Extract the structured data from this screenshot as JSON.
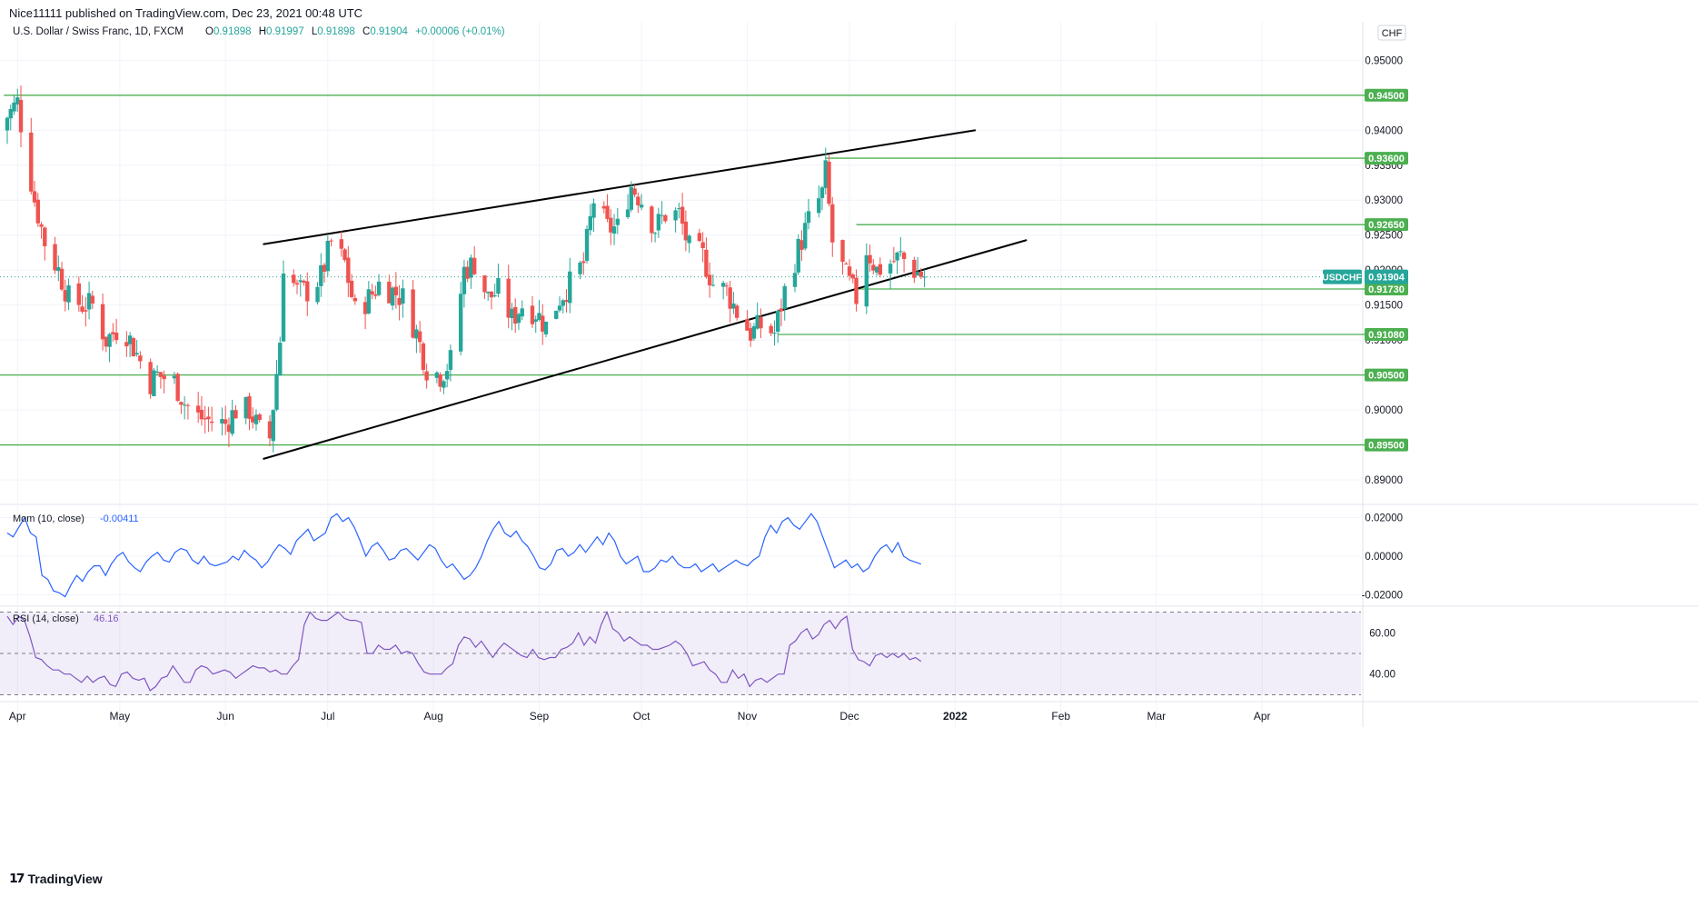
{
  "header": {
    "published": "Nice11111 published on TradingView.com, Dec 23, 2021 00:48 UTC"
  },
  "legend": {
    "symbol": "U.S. Dollar / Swiss Franc, 1D, FXCM",
    "o_label": "O",
    "o_value": "0.91898",
    "h_label": "H",
    "h_value": "0.91997",
    "l_label": "L",
    "l_value": "0.91898",
    "c_label": "C",
    "c_value": "0.91904",
    "change": "+0.00006 (+0.01%)"
  },
  "currency": "CHF",
  "price_ticks": [
    "0.95000",
    "0.94000",
    "0.93500",
    "0.93000",
    "0.92500",
    "0.92000",
    "0.91500",
    "0.91000",
    "0.90500",
    "0.90000",
    "0.89500",
    "0.89000"
  ],
  "levels": [
    {
      "label": "0.94500",
      "value": 0.945
    },
    {
      "label": "0.93600",
      "value": 0.936
    },
    {
      "label": "0.92650",
      "value": 0.9265
    },
    {
      "label": "0.91730",
      "value": 0.9173
    },
    {
      "label": "0.91080",
      "value": 0.9108
    },
    {
      "label": "0.90500",
      "value": 0.905
    },
    {
      "label": "0.89500",
      "value": 0.895
    }
  ],
  "last_price": {
    "symbol": "USDCHF",
    "value_label": "0.91904",
    "value": 0.91904
  },
  "months": [
    "Apr",
    "May",
    "Jun",
    "Jul",
    "Aug",
    "Sep",
    "Oct",
    "Nov",
    "Dec",
    "2022",
    "Feb",
    "Mar",
    "Apr"
  ],
  "mom": {
    "label": "Mom (10, close)",
    "value": "-0.00411",
    "ticks": [
      "0.02000",
      "0.00000",
      "-0.02000"
    ]
  },
  "rsi": {
    "label": "RSI (14, close)",
    "value": "46.16",
    "ticks": [
      "60.00",
      "40.00"
    ]
  },
  "watermark": "TradingView",
  "colors": {
    "up": "#26a69a",
    "down": "#ef5350",
    "level": "#4caf50",
    "trend": "#000000",
    "mom": "#2962ff",
    "rsi": "#7e57c2"
  },
  "chart_data": {
    "type": "candlestick",
    "symbol": "USDCHF",
    "timeframe": "1D",
    "x_range": [
      "2021-03-29",
      "2022-04-30"
    ],
    "ylim": [
      0.8865,
      0.9555
    ],
    "close_path": [
      [
        "2021-03-26",
        0.94
      ],
      [
        "2021-04-01",
        0.944
      ],
      [
        "2021-04-02",
        0.941
      ],
      [
        "2021-04-06",
        0.93
      ],
      [
        "2021-04-09",
        0.924
      ],
      [
        "2021-04-13",
        0.92
      ],
      [
        "2021-04-16",
        0.916
      ],
      [
        "2021-04-20",
        0.915
      ],
      [
        "2021-04-23",
        0.915
      ],
      [
        "2021-04-27",
        0.91
      ],
      [
        "2021-04-30",
        0.9115
      ],
      [
        "2021-05-03",
        0.911
      ],
      [
        "2021-05-06",
        0.908
      ],
      [
        "2021-05-10",
        0.904
      ],
      [
        "2021-05-12",
        0.905
      ],
      [
        "2021-05-17",
        0.904
      ],
      [
        "2021-05-20",
        0.901
      ],
      [
        "2021-05-24",
        0.899
      ],
      [
        "2021-05-27",
        0.8985
      ],
      [
        "2021-06-01",
        0.898
      ],
      [
        "2021-06-04",
        0.9
      ],
      [
        "2021-06-08",
        0.9
      ],
      [
        "2021-06-11",
        0.897
      ],
      [
        "2021-06-14",
        0.896
      ],
      [
        "2021-06-17",
        0.91
      ],
      [
        "2021-06-18",
        0.921
      ],
      [
        "2021-06-22",
        0.917
      ],
      [
        "2021-06-25",
        0.917
      ],
      [
        "2021-06-29",
        0.919
      ],
      [
        "2021-07-02",
        0.924
      ],
      [
        "2021-07-06",
        0.921
      ],
      [
        "2021-07-09",
        0.914
      ],
      [
        "2021-07-13",
        0.916
      ],
      [
        "2021-07-16",
        0.918
      ],
      [
        "2021-07-20",
        0.917
      ],
      [
        "2021-07-23",
        0.916
      ],
      [
        "2021-07-27",
        0.911
      ],
      [
        "2021-07-30",
        0.906
      ],
      [
        "2021-08-03",
        0.905
      ],
      [
        "2021-08-06",
        0.907
      ],
      [
        "2021-08-10",
        0.92
      ],
      [
        "2021-08-13",
        0.921
      ],
      [
        "2021-08-17",
        0.916
      ],
      [
        "2021-08-20",
        0.917
      ],
      [
        "2021-08-24",
        0.913
      ],
      [
        "2021-08-27",
        0.915
      ],
      [
        "2021-08-31",
        0.914
      ],
      [
        "2021-09-03",
        0.912
      ],
      [
        "2021-09-07",
        0.916
      ],
      [
        "2021-09-10",
        0.918
      ],
      [
        "2021-09-14",
        0.921
      ],
      [
        "2021-09-17",
        0.93
      ],
      [
        "2021-09-21",
        0.926
      ],
      [
        "2021-09-24",
        0.926
      ],
      [
        "2021-09-28",
        0.932
      ],
      [
        "2021-10-01",
        0.93
      ],
      [
        "2021-10-05",
        0.926
      ],
      [
        "2021-10-08",
        0.928
      ],
      [
        "2021-10-12",
        0.928
      ],
      [
        "2021-10-15",
        0.923
      ],
      [
        "2021-10-19",
        0.922
      ],
      [
        "2021-10-22",
        0.918
      ],
      [
        "2021-10-26",
        0.917
      ],
      [
        "2021-10-29",
        0.914
      ],
      [
        "2021-11-02",
        0.911
      ],
      [
        "2021-11-05",
        0.912
      ],
      [
        "2021-11-09",
        0.911
      ],
      [
        "2021-11-12",
        0.917
      ],
      [
        "2021-11-16",
        0.923
      ],
      [
        "2021-11-19",
        0.927
      ],
      [
        "2021-11-23",
        0.931
      ],
      [
        "2021-11-24",
        0.934
      ],
      [
        "2021-11-26",
        0.924
      ],
      [
        "2021-11-30",
        0.919
      ],
      [
        "2021-12-03",
        0.916
      ],
      [
        "2021-12-06",
        0.923
      ],
      [
        "2021-12-09",
        0.92
      ],
      [
        "2021-12-13",
        0.921
      ],
      [
        "2021-12-16",
        0.922
      ],
      [
        "2021-12-20",
        0.92
      ],
      [
        "2021-12-23",
        0.91904
      ]
    ],
    "trendlines": [
      {
        "from": [
          "2021-06-12",
          0.9237
        ],
        "to": [
          "2022-01-07",
          0.94
        ]
      },
      {
        "from": [
          "2021-06-12",
          0.893
        ],
        "to": [
          "2022-01-22",
          0.9243
        ]
      }
    ],
    "mom_ylim": [
      -0.0245,
      0.0245
    ],
    "mom_values": [
      0.012,
      0.01,
      0.015,
      0.02,
      0.012,
      0.01,
      -0.01,
      -0.012,
      -0.018,
      -0.019,
      -0.021,
      -0.015,
      -0.01,
      -0.013,
      -0.008,
      -0.005,
      -0.005,
      -0.01,
      -0.004,
      0.0,
      0.002,
      -0.003,
      -0.006,
      -0.008,
      -0.003,
      0.0,
      0.002,
      -0.002,
      -0.003,
      0.002,
      0.004,
      0.003,
      -0.002,
      -0.004,
      0.0,
      -0.004,
      -0.005,
      -0.004,
      -0.003,
      0.0,
      -0.002,
      0.003,
      0.0,
      -0.002,
      -0.006,
      -0.003,
      0.002,
      0.006,
      0.004,
      0.001,
      0.008,
      0.011,
      0.014,
      0.008,
      0.01,
      0.012,
      0.02,
      0.022,
      0.018,
      0.02,
      0.015,
      0.008,
      0.0,
      0.005,
      0.007,
      0.003,
      -0.002,
      -0.001,
      0.003,
      0.004,
      0.001,
      -0.002,
      0.002,
      0.006,
      0.004,
      -0.002,
      -0.006,
      -0.004,
      -0.008,
      -0.012,
      -0.01,
      -0.006,
      0.0,
      0.008,
      0.014,
      0.018,
      0.012,
      0.01,
      0.013,
      0.008,
      0.005,
      0.0,
      -0.006,
      -0.007,
      -0.004,
      0.003,
      0.004,
      0.0,
      0.002,
      0.006,
      0.002,
      0.006,
      0.01,
      0.006,
      0.012,
      0.008,
      0.0,
      -0.004,
      -0.002,
      0.0,
      -0.008,
      -0.008,
      -0.006,
      -0.002,
      -0.003,
      0.0,
      -0.004,
      -0.006,
      -0.006,
      -0.004,
      -0.008,
      -0.006,
      -0.004,
      -0.008,
      -0.006,
      -0.004,
      -0.002,
      -0.004,
      -0.005,
      -0.002,
      0.0,
      0.01,
      0.016,
      0.012,
      0.018,
      0.02,
      0.016,
      0.014,
      0.018,
      0.022,
      0.018,
      0.01,
      0.002,
      -0.006,
      -0.004,
      -0.002,
      -0.006,
      -0.004,
      -0.008,
      -0.006,
      0.0,
      0.004,
      0.006,
      0.002,
      0.007,
      0.0,
      -0.002,
      -0.003,
      -0.00411
    ],
    "rsi_ylim": [
      28,
      72
    ],
    "rsi_values": [
      68,
      64,
      68,
      66,
      58,
      48,
      47,
      44,
      42,
      42,
      40,
      40,
      38,
      36,
      39,
      36,
      38,
      39,
      35,
      34,
      40,
      41,
      38,
      37,
      38,
      32,
      34,
      38,
      39,
      44,
      40,
      36,
      36,
      42,
      44,
      43,
      40,
      41,
      42,
      41,
      38,
      40,
      42,
      44,
      43,
      43,
      41,
      42,
      40,
      40,
      44,
      47,
      64,
      70,
      67,
      66,
      66,
      68,
      70,
      67,
      66,
      66,
      65,
      50,
      50,
      54,
      52,
      52,
      54,
      50,
      51,
      50,
      45,
      41,
      40,
      40,
      40,
      43,
      45,
      54,
      58,
      57,
      53,
      56,
      52,
      48,
      52,
      55,
      53,
      51,
      49,
      48,
      52,
      48,
      47,
      48,
      48,
      52,
      53,
      55,
      60,
      54,
      58,
      55,
      64,
      70,
      62,
      60,
      56,
      58,
      56,
      54,
      54,
      52,
      52,
      53,
      54,
      56,
      54,
      50,
      44,
      45,
      46,
      42,
      40,
      36,
      36,
      42,
      38,
      40,
      34,
      37,
      38,
      36,
      38,
      40,
      40,
      54,
      56,
      60,
      62,
      57,
      59,
      64,
      66,
      62,
      66,
      68,
      52,
      47,
      46,
      44,
      49,
      50,
      48,
      50,
      48,
      50,
      47,
      48,
      46.16
    ]
  }
}
